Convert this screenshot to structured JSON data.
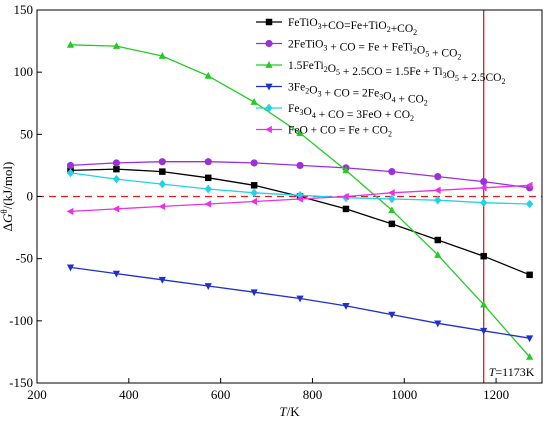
{
  "chart_data": {
    "type": "line",
    "xlabel_italic": "T",
    "xlabel_unit": "/K",
    "ylabel_main": "ΔG",
    "ylabel_sup": "θ",
    "ylabel_unit": "/(kJ/mol)",
    "xlim": [
      200,
      1300
    ],
    "ylim": [
      -150,
      150
    ],
    "xticks": [
      200,
      400,
      600,
      800,
      1000,
      1200
    ],
    "yticks": [
      -150,
      -100,
      -50,
      0,
      50,
      100,
      150
    ],
    "x": [
      273,
      373,
      473,
      573,
      673,
      773,
      873,
      973,
      1073,
      1173,
      1273
    ],
    "zero_line": {
      "y": 0,
      "color": "#e41a1c",
      "style": "dashed"
    },
    "vertical_line": {
      "x": 1173,
      "color": "#e41a1c",
      "label_italic": "T",
      "label_rest": "=1173K"
    },
    "series": [
      {
        "name": "FeTiO3+CO=Fe+TiO2+CO2",
        "color": "#000000",
        "marker": "square",
        "label_parts": [
          [
            "FeTiO",
            ""
          ],
          [
            "3",
            "sub"
          ],
          [
            "+CO=Fe+TiO",
            ""
          ],
          [
            "2",
            "sub"
          ],
          [
            "+CO",
            ""
          ],
          [
            "2",
            "sub"
          ]
        ],
        "values": [
          21,
          22,
          20,
          15,
          9,
          0,
          -10,
          -22,
          -35,
          -48,
          -63
        ]
      },
      {
        "name": "2FeTiO3 + CO = Fe + FeTi2O5 + CO2",
        "color": "#9b30d9",
        "marker": "circle",
        "label_parts": [
          [
            "2FeTiO",
            ""
          ],
          [
            "3",
            "sub"
          ],
          [
            " + CO = Fe + FeTi",
            ""
          ],
          [
            "2",
            "sub"
          ],
          [
            "O",
            ""
          ],
          [
            "5",
            "sub"
          ],
          [
            " + CO",
            ""
          ],
          [
            "2",
            "sub"
          ]
        ],
        "values": [
          25,
          27,
          28,
          28,
          27,
          25,
          23,
          20,
          16,
          12,
          7
        ]
      },
      {
        "name": "1.5FeTi2O5 + 2.5CO = 1.5Fe + Ti3O5 + 2.5CO2",
        "color": "#22cc22",
        "marker": "triangle-up",
        "label_parts": [
          [
            "1.5FeTi",
            ""
          ],
          [
            "2",
            "sub"
          ],
          [
            "O",
            ""
          ],
          [
            "5",
            "sub"
          ],
          [
            " + 2.5CO = 1.5Fe + Ti",
            ""
          ],
          [
            "3",
            "sub"
          ],
          [
            "O",
            ""
          ],
          [
            "5",
            "sub"
          ],
          [
            " + 2.5CO",
            ""
          ],
          [
            "2",
            "sub"
          ]
        ],
        "values": [
          122,
          121,
          113,
          97,
          76,
          51,
          21,
          -11,
          -47,
          -87,
          -129
        ]
      },
      {
        "name": "3Fe2O3 + CO = 2Fe3O4 + CO2",
        "color": "#1f2fd1",
        "marker": "triangle-down",
        "label_parts": [
          [
            "3Fe",
            ""
          ],
          [
            "2",
            "sub"
          ],
          [
            "O",
            ""
          ],
          [
            "3",
            "sub"
          ],
          [
            " + CO = 2Fe",
            ""
          ],
          [
            "3",
            "sub"
          ],
          [
            "O",
            ""
          ],
          [
            "4",
            "sub"
          ],
          [
            " + CO",
            ""
          ],
          [
            "2",
            "sub"
          ]
        ],
        "values": [
          -57,
          -62,
          -67,
          -72,
          -77,
          -82,
          -88,
          -95,
          -102,
          -108,
          -114
        ]
      },
      {
        "name": "Fe3O4 + CO = 3FeO + CO2",
        "color": "#22d3e6",
        "marker": "diamond",
        "label_parts": [
          [
            "Fe",
            ""
          ],
          [
            "3",
            "sub"
          ],
          [
            "O",
            ""
          ],
          [
            "4",
            "sub"
          ],
          [
            " + CO = 3FeO + CO",
            ""
          ],
          [
            "2",
            "sub"
          ]
        ],
        "values": [
          19,
          14,
          10,
          6,
          3,
          1,
          -1,
          -2,
          -3,
          -5,
          -6
        ]
      },
      {
        "name": "FeO + CO = Fe + CO2",
        "color": "#e633e6",
        "marker": "triangle-left",
        "label_parts": [
          [
            "FeO + CO = Fe + CO",
            ""
          ],
          [
            "2",
            "sub"
          ]
        ],
        "values": [
          -12,
          -10,
          -8,
          -6,
          -4,
          -2,
          0,
          3,
          5,
          7,
          9
        ]
      }
    ]
  }
}
